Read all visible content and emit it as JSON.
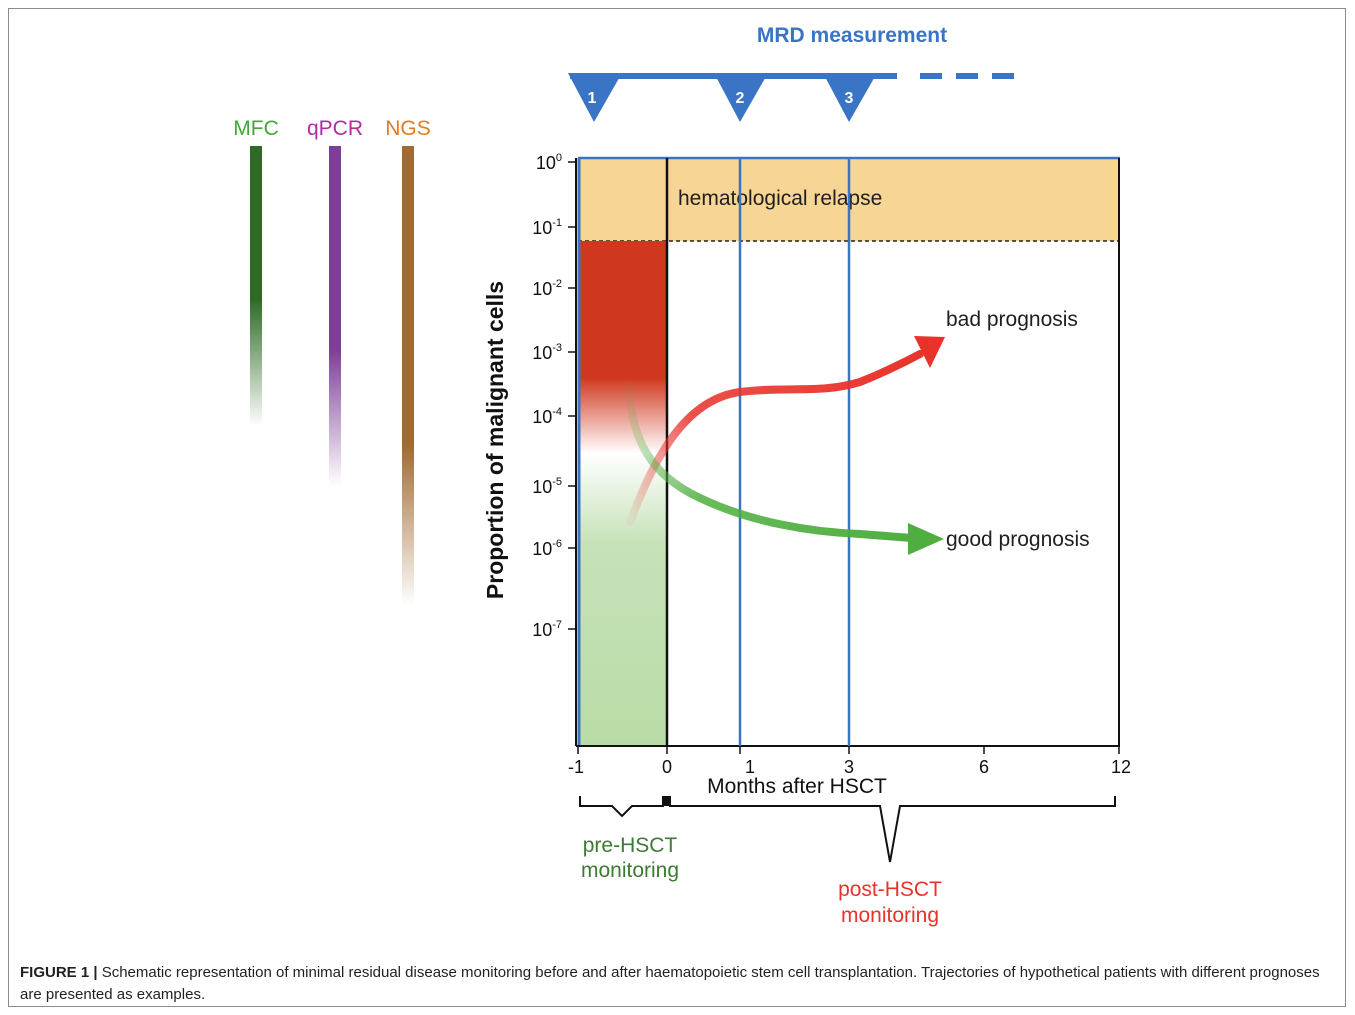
{
  "mrd": {
    "title": "MRD measurement",
    "points": [
      "1",
      "2",
      "3"
    ],
    "color": "#3a74c4"
  },
  "methods": [
    {
      "label": "MFC",
      "label_color": "#47a63c",
      "bar_color": "#2f6b27"
    },
    {
      "label": "qPCR",
      "label_color": "#b52aa0",
      "bar_color": "#7e3f98"
    },
    {
      "label": "NGS",
      "label_color": "#e07b22",
      "bar_color": "#a06a32"
    }
  ],
  "plot": {
    "ylabel": "Proportion of malignant cells",
    "xlabel": "Months after HSCT",
    "y_ticks": [
      "10",
      "10",
      "10",
      "10",
      "10",
      "10",
      "10",
      "10"
    ],
    "y_exponents": [
      "0",
      "-1",
      "-2",
      "-3",
      "-4",
      "-5",
      "-6",
      "-7"
    ],
    "x_ticks": [
      "-1",
      "0",
      "1",
      "3",
      "6",
      "12"
    ],
    "relapse_label": "hematological relapse",
    "bad_label": "bad prognosis",
    "good_label": "good prognosis",
    "relapse_color": "#f6d595",
    "bad_color": "#e8322a",
    "good_color": "#4fae3f"
  },
  "monitoring": {
    "pre_line1": "pre-HSCT",
    "pre_line2": "monitoring",
    "post_line1": "post-HSCT",
    "post_line2": "monitoring",
    "pre_color": "#3d7a35",
    "post_color": "#e8322a"
  },
  "caption": {
    "lead": "FIGURE 1 |",
    "text": " Schematic representation of minimal residual disease monitoring before and after haematopoietic stem cell transplantation. Trajectories of hypothetical patients with different prognoses are presented as examples."
  }
}
